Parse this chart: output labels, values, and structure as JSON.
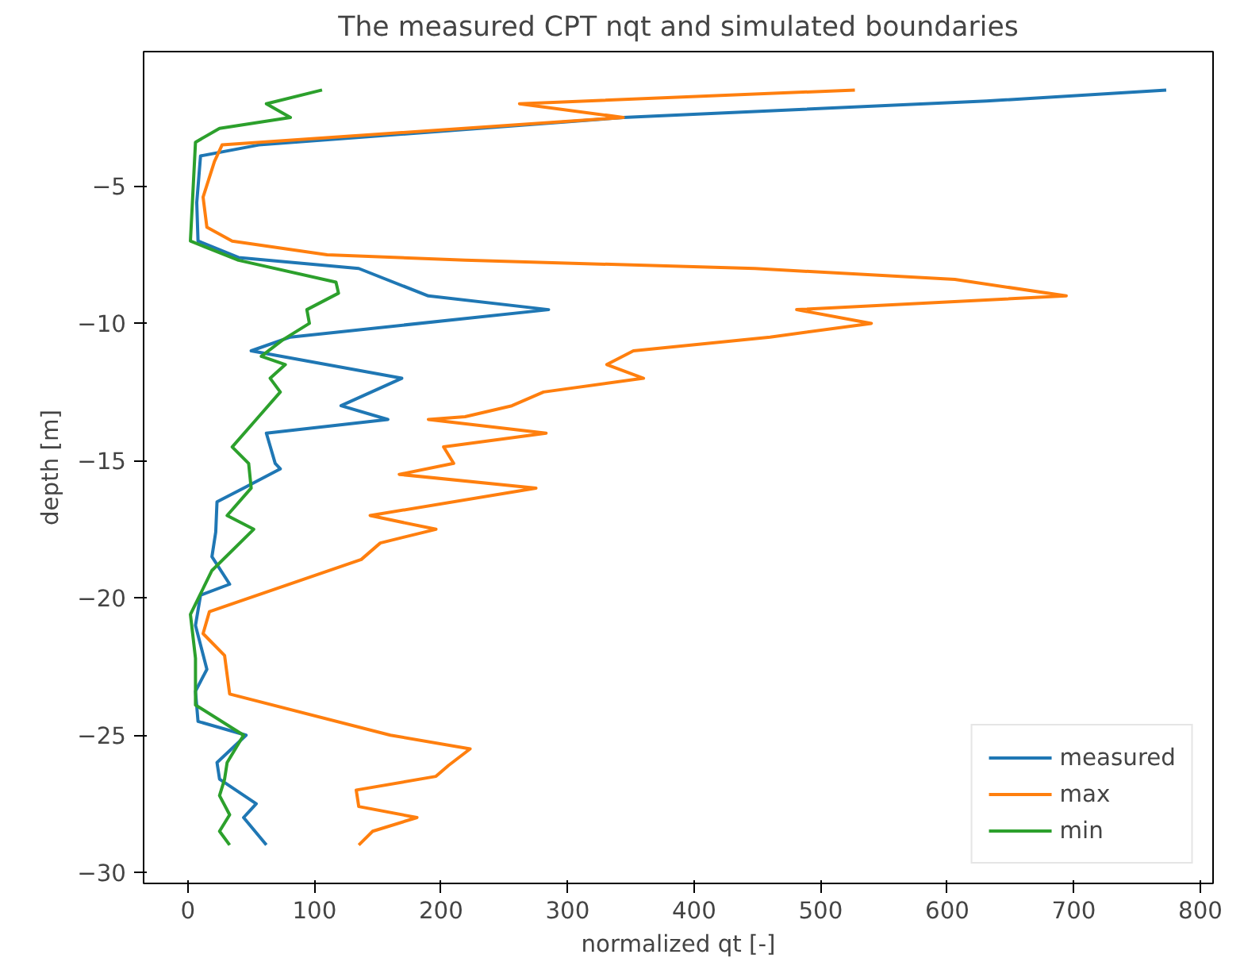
{
  "chart_data": {
    "type": "line",
    "title": "The measured CPT nqt and simulated boundaries",
    "xlabel": "normalized qt [-]",
    "ylabel": "depth [m]",
    "xlim": [
      -35,
      810
    ],
    "ylim": [
      -30.4,
      -0.1
    ],
    "xticks": [
      0,
      100,
      200,
      300,
      400,
      500,
      600,
      700,
      800
    ],
    "yticks": [
      -5,
      -10,
      -15,
      -20,
      -25,
      -30
    ],
    "grid": false,
    "legend": "bottom right",
    "marker": "none",
    "line_style": "solid",
    "series": [
      {
        "name": "measured",
        "color": "#1f77b4",
        "x": [
          773,
          631,
          344,
          56,
          10,
          7,
          8,
          40,
          135,
          190,
          285,
          81,
          50,
          169,
          121,
          158,
          62,
          69,
          73,
          44,
          23,
          22,
          19,
          33,
          10,
          6,
          15,
          6,
          8,
          46,
          23,
          25,
          54,
          44,
          62
        ],
        "values": [
          -1.5,
          -1.9,
          -2.5,
          -3.5,
          -3.9,
          -5.6,
          -7,
          -7.6,
          -8,
          -9,
          -9.5,
          -10.5,
          -11,
          -12,
          -13,
          -13.5,
          -14,
          -15.1,
          -15.3,
          -16,
          -16.5,
          -17.6,
          -18.5,
          -19.5,
          -19.9,
          -21,
          -22.6,
          -23.4,
          -24.5,
          -25,
          -26,
          -26.6,
          -27.5,
          -28,
          -29
        ]
      },
      {
        "name": "max",
        "color": "#ff7f0e",
        "x": [
          527,
          262,
          344,
          27,
          21,
          12,
          15,
          35,
          110,
          219,
          448,
          606,
          694,
          481,
          540,
          460,
          352,
          331,
          360,
          281,
          256,
          219,
          190,
          283,
          202,
          210,
          167,
          275,
          144,
          196,
          152,
          137,
          17,
          12,
          29,
          33,
          160,
          223,
          206,
          196,
          133,
          135,
          181,
          146,
          135
        ],
        "values": [
          -1.5,
          -2,
          -2.5,
          -3.5,
          -4.1,
          -5.4,
          -6.5,
          -7,
          -7.5,
          -7.7,
          -8,
          -8.4,
          -9,
          -9.5,
          -10,
          -10.5,
          -11,
          -11.5,
          -12,
          -12.5,
          -13,
          -13.4,
          -13.5,
          -14,
          -14.5,
          -15.1,
          -15.5,
          -16,
          -17,
          -17.5,
          -18,
          -18.6,
          -20.5,
          -21.3,
          -22.1,
          -23.5,
          -25,
          -25.5,
          -26.1,
          -26.5,
          -27,
          -27.6,
          -28,
          -28.5,
          -29
        ]
      },
      {
        "name": "min",
        "color": "#2ca02c",
        "x": [
          106,
          62,
          81,
          25,
          6,
          2,
          40,
          117,
          119,
          94,
          96,
          75,
          58,
          77,
          65,
          73,
          54,
          35,
          48,
          50,
          31,
          52,
          19,
          2,
          6,
          6,
          44,
          31,
          29,
          25,
          33,
          25,
          33
        ],
        "values": [
          -1.5,
          -2,
          -2.5,
          -2.9,
          -3.4,
          -7,
          -7.7,
          -8.5,
          -8.9,
          -9.5,
          -10,
          -10.6,
          -11.2,
          -11.5,
          -12,
          -12.5,
          -13.5,
          -14.5,
          -15.1,
          -16,
          -17,
          -17.5,
          -19,
          -20.6,
          -22.2,
          -23.9,
          -25,
          -26,
          -26.6,
          -27.2,
          -27.9,
          -28.5,
          -29
        ]
      }
    ]
  }
}
